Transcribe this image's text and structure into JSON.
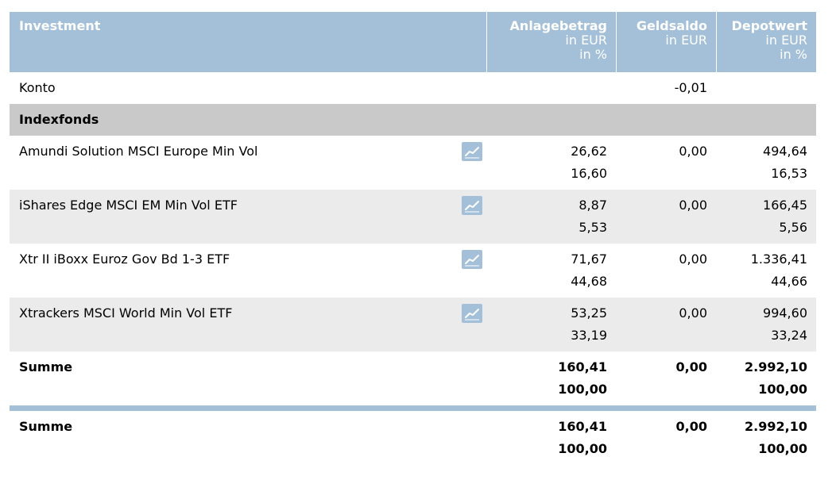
{
  "header": {
    "investment": "Investment",
    "cols": [
      {
        "title": "Anlagebetrag",
        "sub1": "in EUR",
        "sub2": "in %"
      },
      {
        "title": "Geldsaldo",
        "sub1": "in EUR",
        "sub2": ""
      },
      {
        "title": "Depotwert",
        "sub1": "in EUR",
        "sub2": "in %"
      }
    ]
  },
  "konto": {
    "label": "Konto",
    "geldsaldo": "-0,01"
  },
  "group": {
    "label": "Indexfonds"
  },
  "funds": [
    {
      "name": "Amundi Solution MSCI Europe Min Vol",
      "anlage_eur": "26,62",
      "anlage_pct": "16,60",
      "geldsaldo": "0,00",
      "depot_eur": "494,64",
      "depot_pct": "16,53"
    },
    {
      "name": "iShares Edge MSCI EM Min Vol ETF",
      "anlage_eur": "8,87",
      "anlage_pct": "5,53",
      "geldsaldo": "0,00",
      "depot_eur": "166,45",
      "depot_pct": "5,56"
    },
    {
      "name": "Xtr II iBoxx Euroz Gov Bd 1-3 ETF",
      "anlage_eur": "71,67",
      "anlage_pct": "44,68",
      "geldsaldo": "0,00",
      "depot_eur": "1.336,41",
      "depot_pct": "44,66"
    },
    {
      "name": "Xtrackers MSCI World Min Vol ETF",
      "anlage_eur": "53,25",
      "anlage_pct": "33,19",
      "geldsaldo": "0,00",
      "depot_eur": "994,60",
      "depot_pct": "33,24"
    }
  ],
  "group_sum": {
    "label": "Summe",
    "anlage_eur": "160,41",
    "anlage_pct": "100,00",
    "geldsaldo": "0,00",
    "depot_eur": "2.992,10",
    "depot_pct": "100,00"
  },
  "total_sum": {
    "label": "Summe",
    "anlage_eur": "160,41",
    "anlage_pct": "100,00",
    "geldsaldo": "0,00",
    "depot_eur": "2.992,10",
    "depot_pct": "100,00"
  },
  "icons": {
    "chart": "line-chart-icon"
  },
  "colors": {
    "header_bg": "#a3c0d8",
    "group_bg": "#c9c9c9",
    "alt_row_bg": "#ebebeb",
    "header_text": "#ffffff"
  }
}
